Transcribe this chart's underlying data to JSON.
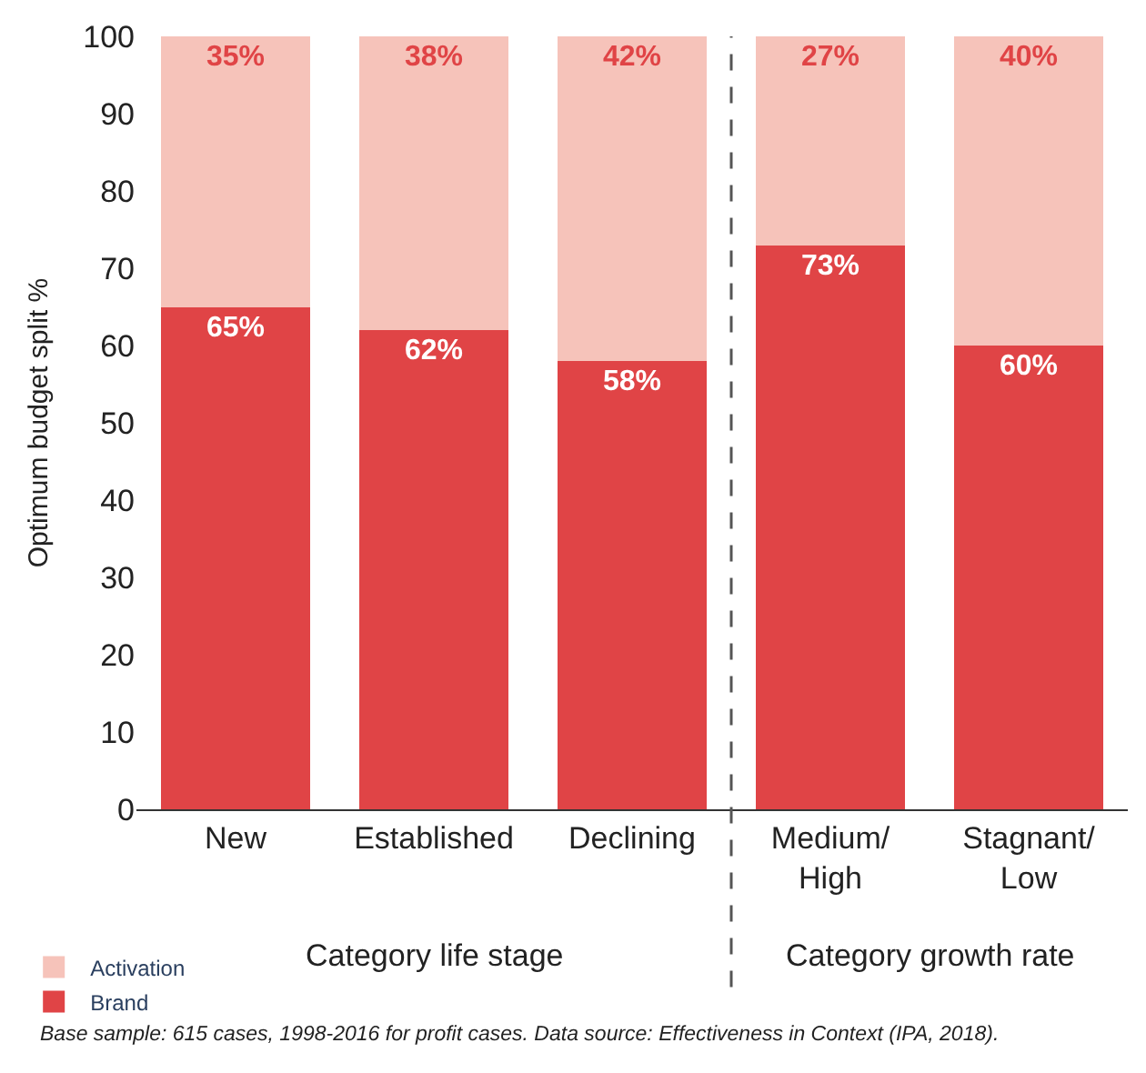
{
  "chart_data": {
    "type": "bar",
    "stacked": true,
    "ylabel": "Optimum budget split %",
    "categories": [
      "New",
      "Established",
      "Declining",
      "Medium/\nHigh",
      "Stagnant/\nLow"
    ],
    "series": [
      {
        "name": "Brand",
        "color": "#e04446",
        "values": [
          65,
          62,
          58,
          73,
          60
        ],
        "value_labels": [
          "65%",
          "62%",
          "58%",
          "73%",
          "60%"
        ]
      },
      {
        "name": "Activation",
        "color": "#f6c3ba",
        "values": [
          35,
          38,
          42,
          27,
          40
        ],
        "value_labels": [
          "35%",
          "38%",
          "42%",
          "27%",
          "40%"
        ]
      }
    ],
    "ylim": [
      0,
      100
    ],
    "yticks": [
      0,
      10,
      20,
      30,
      40,
      50,
      60,
      70,
      80,
      90,
      100
    ],
    "legend": "bottom left",
    "annotations": [
      "Category life stage",
      "Category growth rate",
      "Base sample: 615 cases, 1998-2016 for profit cases. Data source: Effectiveness in Context (IPA, 2018)."
    ]
  }
}
